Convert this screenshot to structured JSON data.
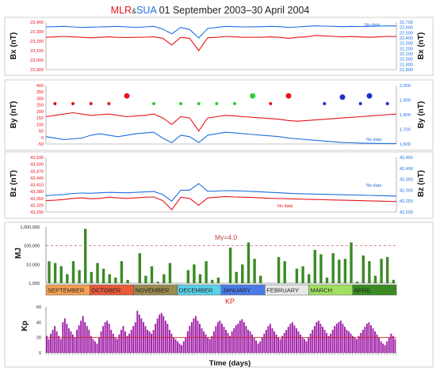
{
  "title": {
    "part1": "MLR",
    "part2": "&",
    "part3": "SUA",
    "part4": " 01 September 2003–30 April 2004"
  },
  "colors": {
    "mlr": "#e8141b",
    "sua": "#1e6fe0",
    "mj_bar": "#3a8a25",
    "kp_bar": "#a020a8",
    "kp_line": "#d02020",
    "dots_red": "#e8141b",
    "dots_green": "#2fd02f",
    "dots_blue": "#1a2fd0"
  },
  "xaxis_label": "Time (days)",
  "months": [
    {
      "name": "SEPTEMBER",
      "bg": "#f5a050"
    },
    {
      "name": "OCTOBER",
      "bg": "#e85a3a"
    },
    {
      "name": "NOVEMBER",
      "bg": "#9a8a50"
    },
    {
      "name": "DECEMBER",
      "bg": "#5ad0e8"
    },
    {
      "name": "JANUARY",
      "bg": "#4a7ae8"
    },
    {
      "name": "FEBRUARY",
      "bg": "#e8e8e8"
    },
    {
      "name": "MARCH",
      "bg": "#a0e060"
    },
    {
      "name": "APRIL",
      "bg": "#3a8a25"
    }
  ],
  "chart_data": [
    {
      "type": "line",
      "ylabel_left": "Bx (nT)",
      "ylabel_right": "Bx (nT)",
      "left_ticks": [
        "23,400",
        "23,300",
        "23,200",
        "23,100",
        "23,000",
        "22,900"
      ],
      "right_ticks": [
        "22,700",
        "22,600",
        "22,500",
        "22,400",
        "22,300",
        "22,200",
        "22,100",
        "22,000",
        "21,900",
        "21,800"
      ],
      "ylim_left": [
        22900,
        23400
      ],
      "ylim_right": [
        21800,
        22700
      ],
      "annotations": [
        "No data"
      ],
      "series": [
        {
          "station": "MLR",
          "axis": "left",
          "values": [
            23240,
            23245,
            23250,
            23245,
            23240,
            23235,
            23240,
            23245,
            23240,
            23238,
            23240,
            23242,
            23245,
            23230,
            23160,
            23240,
            23230,
            23100,
            23235,
            23240,
            23250,
            23245,
            23240,
            23242,
            23240,
            23245,
            23240,
            23230,
            23240,
            23245,
            23260,
            23255,
            23250,
            23245,
            23248,
            23245,
            23240,
            23245,
            23250,
            23248
          ]
        },
        {
          "station": "SUA",
          "axis": "right",
          "values": [
            22610,
            22615,
            22620,
            22610,
            22600,
            22605,
            22610,
            22615,
            22620,
            22610,
            22600,
            22610,
            22620,
            22570,
            22480,
            22600,
            22560,
            22400,
            22580,
            22600,
            22620,
            22615,
            22610,
            22612,
            22615,
            22620,
            22615,
            22600,
            22610,
            22620,
            22630,
            22625,
            22620,
            22615,
            22620,
            22618,
            22620,
            22625,
            22628,
            22630
          ]
        }
      ]
    },
    {
      "type": "line",
      "ylabel_left": "By (nT)",
      "ylabel_right": "By (nT)",
      "left_ticks": [
        "400",
        "350",
        "300",
        "250",
        "200",
        "150",
        "100",
        "50",
        "0",
        "-50"
      ],
      "right_ticks": [
        "2,000",
        "1,900",
        "1,800",
        "1,700",
        "1,600"
      ],
      "ylim_left": [
        -50,
        400
      ],
      "ylim_right": [
        1600,
        2000
      ],
      "annotations": [
        "No data"
      ],
      "series": [
        {
          "station": "MLR",
          "axis": "left",
          "values": [
            160,
            170,
            180,
            190,
            180,
            170,
            175,
            180,
            170,
            160,
            165,
            170,
            180,
            150,
            100,
            160,
            150,
            50,
            150,
            160,
            170,
            165,
            160,
            155,
            150,
            145,
            140,
            130,
            125,
            130,
            135,
            140,
            145,
            150,
            155,
            160,
            165,
            170,
            175,
            180
          ]
        },
        {
          "station": "SUA",
          "axis": "right",
          "values": [
            1650,
            1640,
            1630,
            1635,
            1640,
            1660,
            1670,
            1660,
            1650,
            1660,
            1670,
            1675,
            1680,
            1640,
            1610,
            1660,
            1650,
            1610,
            1660,
            1670,
            1680,
            1675,
            1670,
            1665,
            1660,
            1655,
            1650,
            1640,
            1635,
            1630,
            1625,
            1620,
            1615,
            1610,
            1608,
            1606,
            1605,
            1604,
            1603,
            1602
          ]
        }
      ],
      "markers": [
        {
          "date_index": 1,
          "value": 260,
          "color": "red"
        },
        {
          "date_index": 3,
          "value": 260,
          "color": "red"
        },
        {
          "date_index": 5,
          "value": 260,
          "color": "red"
        },
        {
          "date_index": 7,
          "value": 260,
          "color": "red"
        },
        {
          "date_index": 9,
          "value": 320,
          "color": "red",
          "size": "large"
        },
        {
          "date_index": 12,
          "value": 260,
          "color": "green"
        },
        {
          "date_index": 15,
          "value": 260,
          "color": "green"
        },
        {
          "date_index": 17,
          "value": 260,
          "color": "green"
        },
        {
          "date_index": 19,
          "value": 260,
          "color": "green"
        },
        {
          "date_index": 21,
          "value": 260,
          "color": "green"
        },
        {
          "date_index": 23,
          "value": 320,
          "color": "green",
          "size": "large"
        },
        {
          "date_index": 25,
          "value": 260,
          "color": "red"
        },
        {
          "date_index": 27,
          "value": 320,
          "color": "red",
          "size": "large"
        },
        {
          "date_index": 31,
          "value": 260,
          "color": "blue"
        },
        {
          "date_index": 33,
          "value": 310,
          "color": "blue",
          "size": "large"
        },
        {
          "date_index": 35,
          "value": 260,
          "color": "blue"
        },
        {
          "date_index": 36,
          "value": 320,
          "color": "blue",
          "size": "large"
        },
        {
          "date_index": 38,
          "value": 260,
          "color": "blue"
        }
      ]
    },
    {
      "type": "line",
      "ylabel_left": "Bz (nT)",
      "ylabel_right": "Bz (nT)",
      "left_ticks": [
        "43,530",
        "43,500",
        "43,470",
        "43,440",
        "43,410",
        "43,380",
        "43,350",
        "43,320",
        "43,290"
      ],
      "right_ticks": [
        "42,450",
        "42,400",
        "42,350",
        "42,300",
        "42,250",
        "42,200"
      ],
      "ylim_left": [
        43290,
        43530
      ],
      "ylim_right": [
        42200,
        42450
      ],
      "annotations": [
        "No data",
        "No data"
      ],
      "series": [
        {
          "station": "MLR",
          "axis": "left",
          "values": [
            43340,
            43342,
            43345,
            43350,
            43352,
            43348,
            43350,
            43355,
            43352,
            43350,
            43352,
            43355,
            43356,
            43340,
            43300,
            43355,
            43350,
            43320,
            43352,
            43355,
            43358,
            43356,
            43355,
            43354,
            43352,
            43350,
            43349,
            43348,
            43347,
            43346,
            43345,
            43344,
            43343,
            43342,
            43341,
            43340,
            43339,
            43338,
            43337,
            43336
          ]
        },
        {
          "station": "SUA",
          "axis": "right",
          "values": [
            42275,
            42278,
            42280,
            42285,
            42287,
            42286,
            42288,
            42290,
            42289,
            42288,
            42290,
            42292,
            42294,
            42280,
            42250,
            42300,
            42300,
            42330,
            42295,
            42296,
            42298,
            42297,
            42296,
            42294,
            42292,
            42290,
            42288,
            42286,
            42284,
            42283,
            42282,
            42281,
            42280,
            42279,
            42278,
            42277,
            42276,
            42275,
            42274,
            42273
          ]
        }
      ]
    },
    {
      "type": "bar",
      "ylabel": "MJ",
      "yscale": "log",
      "y_ticks": [
        "1,000,000",
        "100,000",
        "10,000",
        "1,000"
      ],
      "ylim": [
        1000,
        1000000
      ],
      "threshold_label": "Mγ=4.0",
      "threshold_value": 100000,
      "values": [
        15000,
        12000,
        8000,
        3000,
        15000,
        5000,
        800000,
        4000,
        12000,
        6000,
        3000,
        2000,
        15000,
        1500,
        1000,
        40000,
        2500,
        8000,
        1200,
        3000,
        12000,
        1000,
        1000,
        5000,
        10000,
        3000,
        15000,
        1500,
        2000,
        1000,
        80000,
        4000,
        10000,
        150000,
        20000,
        2500,
        1000,
        1000,
        25000,
        15000,
        1000,
        6000,
        8000,
        3000,
        60000,
        35000,
        2000,
        40000,
        18000,
        20000,
        150000,
        1200,
        30000,
        15000,
        2500,
        20000,
        25000,
        1500
      ]
    },
    {
      "type": "bar",
      "ylabel": "Kp",
      "title": "KP",
      "y_ticks": [
        "60",
        "40",
        "20",
        "0"
      ],
      "ylim": [
        0,
        60
      ],
      "reference_line": 20,
      "values": [
        22,
        18,
        25,
        30,
        35,
        28,
        22,
        18,
        40,
        45,
        38,
        32,
        28,
        24,
        20,
        30,
        36,
        42,
        48,
        40,
        35,
        30,
        22,
        18,
        15,
        12,
        20,
        28,
        35,
        40,
        42,
        38,
        30,
        25,
        20,
        18,
        24,
        30,
        35,
        28,
        22,
        25,
        30,
        35,
        40,
        55,
        50,
        45,
        40,
        35,
        30,
        28,
        25,
        30,
        38,
        45,
        50,
        52,
        48,
        42,
        38,
        30,
        25,
        20,
        18,
        15,
        12,
        10,
        15,
        20,
        28,
        35,
        40,
        45,
        48,
        42,
        38,
        32,
        28,
        24,
        20,
        18,
        22,
        28,
        35,
        40,
        42,
        38,
        34,
        30,
        26,
        22,
        28,
        32,
        36,
        38,
        42,
        44,
        40,
        35,
        30,
        28,
        24,
        20,
        16,
        12,
        15,
        20,
        25,
        30,
        35,
        38,
        32,
        28,
        24,
        20,
        18,
        22,
        26,
        30,
        34,
        38,
        40,
        36,
        32,
        28,
        24,
        20,
        18,
        15,
        20,
        25,
        30,
        35,
        40,
        42,
        38,
        34,
        30,
        26,
        22,
        25,
        30,
        35,
        38,
        40,
        42,
        38,
        34,
        30,
        28,
        25,
        22,
        20,
        18,
        22,
        26,
        30,
        34,
        38,
        40,
        36,
        32,
        28,
        24,
        20,
        15,
        12,
        10,
        15,
        20,
        25,
        22,
        18
      ]
    }
  ]
}
